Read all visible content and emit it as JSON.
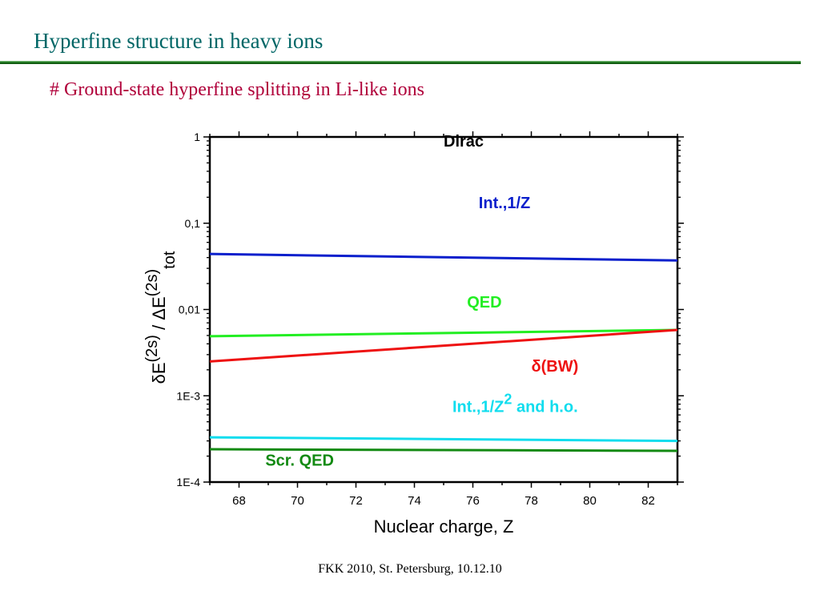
{
  "slide": {
    "title": "Hyperfine structure in heavy ions",
    "subtitle": "# Ground-state hyperfine splitting in Li-like ions",
    "footer": "FKK 2010, St. Petersburg, 10.12.10"
  },
  "chart_data": {
    "type": "line",
    "xlabel": "Nuclear charge, Z",
    "ylabel": {
      "text_main": "δE",
      "sup1": "(2s)",
      "text_mid": " / ΔE",
      "sup2": "(2s)",
      "sub": "tot"
    },
    "xlim": [
      67,
      83
    ],
    "ylim": [
      0.0001,
      1
    ],
    "yscale": "log",
    "x_ticks": [
      68,
      70,
      72,
      74,
      76,
      78,
      80,
      82
    ],
    "y_ticks": [
      {
        "value": 1,
        "label": "1"
      },
      {
        "value": 0.1,
        "label": "0,1"
      },
      {
        "value": 0.01,
        "label": "0,01"
      },
      {
        "value": 0.001,
        "label": "1E-3"
      },
      {
        "value": 0.0001,
        "label": "1E-4"
      }
    ],
    "grid": false,
    "annotations": [
      {
        "text": "Dirac",
        "color": "#000000",
        "x": 75.0,
        "y": 0.77
      }
    ],
    "series": [
      {
        "name": "Int.,1/Z",
        "color": "#0a1fcc",
        "x": [
          67,
          83
        ],
        "y": [
          0.044,
          0.037
        ],
        "label_x": 76.2,
        "label_y": 0.15
      },
      {
        "name": "QED",
        "color": "#22ee22",
        "x": [
          67,
          83
        ],
        "y": [
          0.0049,
          0.0058
        ],
        "label_x": 75.8,
        "label_y": 0.0105
      },
      {
        "name": "δ(BW)",
        "color": "#ee1111",
        "x": [
          67,
          83
        ],
        "y": [
          0.0025,
          0.0058
        ],
        "label_x": 78.0,
        "label_y": 0.0019
      },
      {
        "name": "Int.,1/Z",
        "sup": "2",
        "suffix": " and h.o.",
        "color": "#11ddee",
        "x": [
          67,
          83
        ],
        "y": [
          0.00033,
          0.0003
        ],
        "label_x": 75.3,
        "label_y": 0.00065
      },
      {
        "name": "Scr. QED",
        "color": "#138a13",
        "x": [
          67,
          83
        ],
        "y": [
          0.00024,
          0.00023
        ],
        "label_x": 68.9,
        "label_y": 0.000155
      }
    ]
  }
}
